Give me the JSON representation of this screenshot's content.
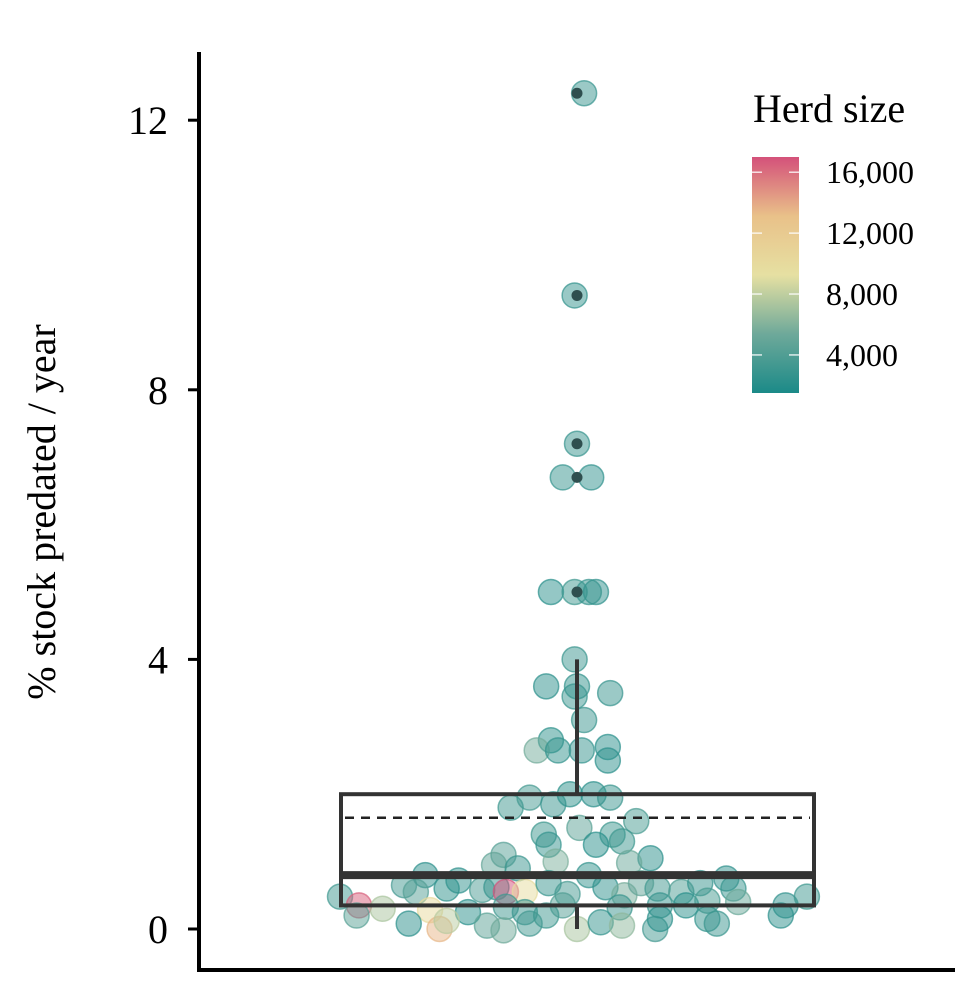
{
  "chart_data": {
    "type": "scatter",
    "subtype": "boxplot-with-beeswarm",
    "ylabel": "% stock predated / year",
    "xlabel": "",
    "ylim": [
      -0.4,
      13
    ],
    "yticks": [
      0,
      4,
      8,
      12
    ],
    "ytick_labels": [
      "0",
      "4",
      "8",
      "12"
    ],
    "grid": false,
    "legend": {
      "title": "Herd size",
      "placement": "top-right",
      "type": "colorbar",
      "range": [
        1500,
        17000
      ],
      "ticks": [
        4000,
        8000,
        12000,
        16000
      ],
      "tick_labels": [
        "4,000",
        "8,000",
        "12,000",
        "16,000"
      ],
      "colors": [
        "#1b8a88",
        "#6ea99a",
        "#e6e0a2",
        "#e9c189",
        "#d4517a"
      ]
    },
    "box": {
      "q1": 0.35,
      "median": 0.8,
      "mean": 1.65,
      "q3": 2.0,
      "whisker_low": 0.0,
      "whisker_high": 4.0,
      "outliers": [
        12.4,
        9.4,
        7.2,
        6.7,
        5.0
      ]
    },
    "points": [
      {
        "x": 0.03,
        "y": 12.4,
        "h": 2800
      },
      {
        "x": -0.01,
        "y": 9.4,
        "h": 2600
      },
      {
        "x": 0.0,
        "y": 7.2,
        "h": 2800
      },
      {
        "x": -0.06,
        "y": 6.7,
        "h": 2700
      },
      {
        "x": 0.06,
        "y": 6.7,
        "h": 2500
      },
      {
        "x": -0.11,
        "y": 5.0,
        "h": 2200
      },
      {
        "x": -0.01,
        "y": 5.0,
        "h": 3200
      },
      {
        "x": 0.08,
        "y": 5.0,
        "h": 2500
      },
      {
        "x": 0.05,
        "y": 5.0,
        "h": 2800
      },
      {
        "x": -0.01,
        "y": 4.0,
        "h": 3000
      },
      {
        "x": -0.13,
        "y": 3.6,
        "h": 2300
      },
      {
        "x": 0.0,
        "y": 3.6,
        "h": 2600
      },
      {
        "x": -0.01,
        "y": 3.45,
        "h": 2900
      },
      {
        "x": 0.14,
        "y": 3.5,
        "h": 2800
      },
      {
        "x": 0.03,
        "y": 3.1,
        "h": 3000
      },
      {
        "x": -0.11,
        "y": 2.8,
        "h": 2400
      },
      {
        "x": -0.17,
        "y": 2.65,
        "h": 5500
      },
      {
        "x": -0.08,
        "y": 2.65,
        "h": 2600
      },
      {
        "x": 0.02,
        "y": 2.65,
        "h": 2700
      },
      {
        "x": 0.13,
        "y": 2.7,
        "h": 2200
      },
      {
        "x": 0.13,
        "y": 2.5,
        "h": 2300
      },
      {
        "x": -0.2,
        "y": 1.95,
        "h": 3500
      },
      {
        "x": -0.1,
        "y": 1.85,
        "h": 2800
      },
      {
        "x": -0.03,
        "y": 2.0,
        "h": 2400
      },
      {
        "x": 0.07,
        "y": 2.0,
        "h": 2300
      },
      {
        "x": 0.14,
        "y": 1.95,
        "h": 3000
      },
      {
        "x": -0.28,
        "y": 1.8,
        "h": 3200
      },
      {
        "x": -0.14,
        "y": 1.4,
        "h": 3100
      },
      {
        "x": -0.12,
        "y": 1.25,
        "h": 2700
      },
      {
        "x": 0.01,
        "y": 1.5,
        "h": 4500
      },
      {
        "x": 0.15,
        "y": 1.4,
        "h": 3100
      },
      {
        "x": 0.25,
        "y": 1.6,
        "h": 3600
      },
      {
        "x": 0.08,
        "y": 1.25,
        "h": 2200
      },
      {
        "x": 0.19,
        "y": 1.3,
        "h": 3100
      },
      {
        "x": -0.31,
        "y": 1.1,
        "h": 4200
      },
      {
        "x": -0.35,
        "y": 0.95,
        "h": 4800
      },
      {
        "x": -0.25,
        "y": 0.9,
        "h": 3000
      },
      {
        "x": -0.09,
        "y": 1.0,
        "h": 5800
      },
      {
        "x": 0.31,
        "y": 1.05,
        "h": 2300
      },
      {
        "x": 0.22,
        "y": 0.98,
        "h": 5200
      },
      {
        "x": -0.64,
        "y": 0.8,
        "h": 2300
      },
      {
        "x": -0.5,
        "y": 0.72,
        "h": 2500
      },
      {
        "x": 0.05,
        "y": 0.8,
        "h": 2600
      },
      {
        "x": -0.73,
        "y": 0.65,
        "h": 3400
      },
      {
        "x": -0.68,
        "y": 0.55,
        "h": 4200
      },
      {
        "x": -0.55,
        "y": 0.6,
        "h": 2400
      },
      {
        "x": -0.4,
        "y": 0.58,
        "h": 3800
      },
      {
        "x": -0.34,
        "y": 0.62,
        "h": 2800
      },
      {
        "x": -0.3,
        "y": 0.55,
        "h": 17000
      },
      {
        "x": -0.22,
        "y": 0.55,
        "h": 9800
      },
      {
        "x": -0.12,
        "y": 0.68,
        "h": 2900
      },
      {
        "x": -0.04,
        "y": 0.52,
        "h": 3500
      },
      {
        "x": 0.12,
        "y": 0.62,
        "h": 2500
      },
      {
        "x": 0.2,
        "y": 0.5,
        "h": 5600
      },
      {
        "x": 0.27,
        "y": 0.68,
        "h": 4800
      },
      {
        "x": 0.34,
        "y": 0.6,
        "h": 3300
      },
      {
        "x": 0.44,
        "y": 0.55,
        "h": 3900
      },
      {
        "x": 0.52,
        "y": 0.68,
        "h": 2700
      },
      {
        "x": 0.63,
        "y": 0.75,
        "h": 2500
      },
      {
        "x": 0.66,
        "y": 0.6,
        "h": 2900
      },
      {
        "x": -1.0,
        "y": 0.48,
        "h": 3200
      },
      {
        "x": -0.92,
        "y": 0.35,
        "h": 16500
      },
      {
        "x": -0.82,
        "y": 0.3,
        "h": 7300
      },
      {
        "x": -0.62,
        "y": 0.28,
        "h": 10000
      },
      {
        "x": -0.46,
        "y": 0.25,
        "h": 2200
      },
      {
        "x": -0.3,
        "y": 0.33,
        "h": 3200
      },
      {
        "x": -0.22,
        "y": 0.25,
        "h": 2800
      },
      {
        "x": -0.06,
        "y": 0.35,
        "h": 4000
      },
      {
        "x": 0.18,
        "y": 0.32,
        "h": 3000
      },
      {
        "x": 0.35,
        "y": 0.35,
        "h": 2800
      },
      {
        "x": 0.46,
        "y": 0.35,
        "h": 2200
      },
      {
        "x": 0.55,
        "y": 0.42,
        "h": 3600
      },
      {
        "x": 0.68,
        "y": 0.4,
        "h": 5200
      },
      {
        "x": 0.88,
        "y": 0.35,
        "h": 2500
      },
      {
        "x": 0.97,
        "y": 0.48,
        "h": 3100
      },
      {
        "x": -0.93,
        "y": 0.2,
        "h": 4400
      },
      {
        "x": -0.71,
        "y": 0.08,
        "h": 2300
      },
      {
        "x": -0.58,
        "y": 0.0,
        "h": 13500
      },
      {
        "x": -0.55,
        "y": 0.12,
        "h": 7800
      },
      {
        "x": -0.38,
        "y": 0.05,
        "h": 4500
      },
      {
        "x": -0.31,
        "y": -0.02,
        "h": 5400
      },
      {
        "x": -0.2,
        "y": 0.08,
        "h": 3400
      },
      {
        "x": -0.13,
        "y": 0.2,
        "h": 3100
      },
      {
        "x": 0.0,
        "y": 0.0,
        "h": 7200
      },
      {
        "x": 0.1,
        "y": 0.1,
        "h": 2600
      },
      {
        "x": 0.19,
        "y": 0.05,
        "h": 6400
      },
      {
        "x": 0.33,
        "y": 0.0,
        "h": 3400
      },
      {
        "x": 0.35,
        "y": 0.15,
        "h": 2300
      },
      {
        "x": 0.55,
        "y": 0.15,
        "h": 2700
      },
      {
        "x": 0.59,
        "y": 0.08,
        "h": 3000
      },
      {
        "x": 0.86,
        "y": 0.2,
        "h": 2300
      }
    ]
  }
}
